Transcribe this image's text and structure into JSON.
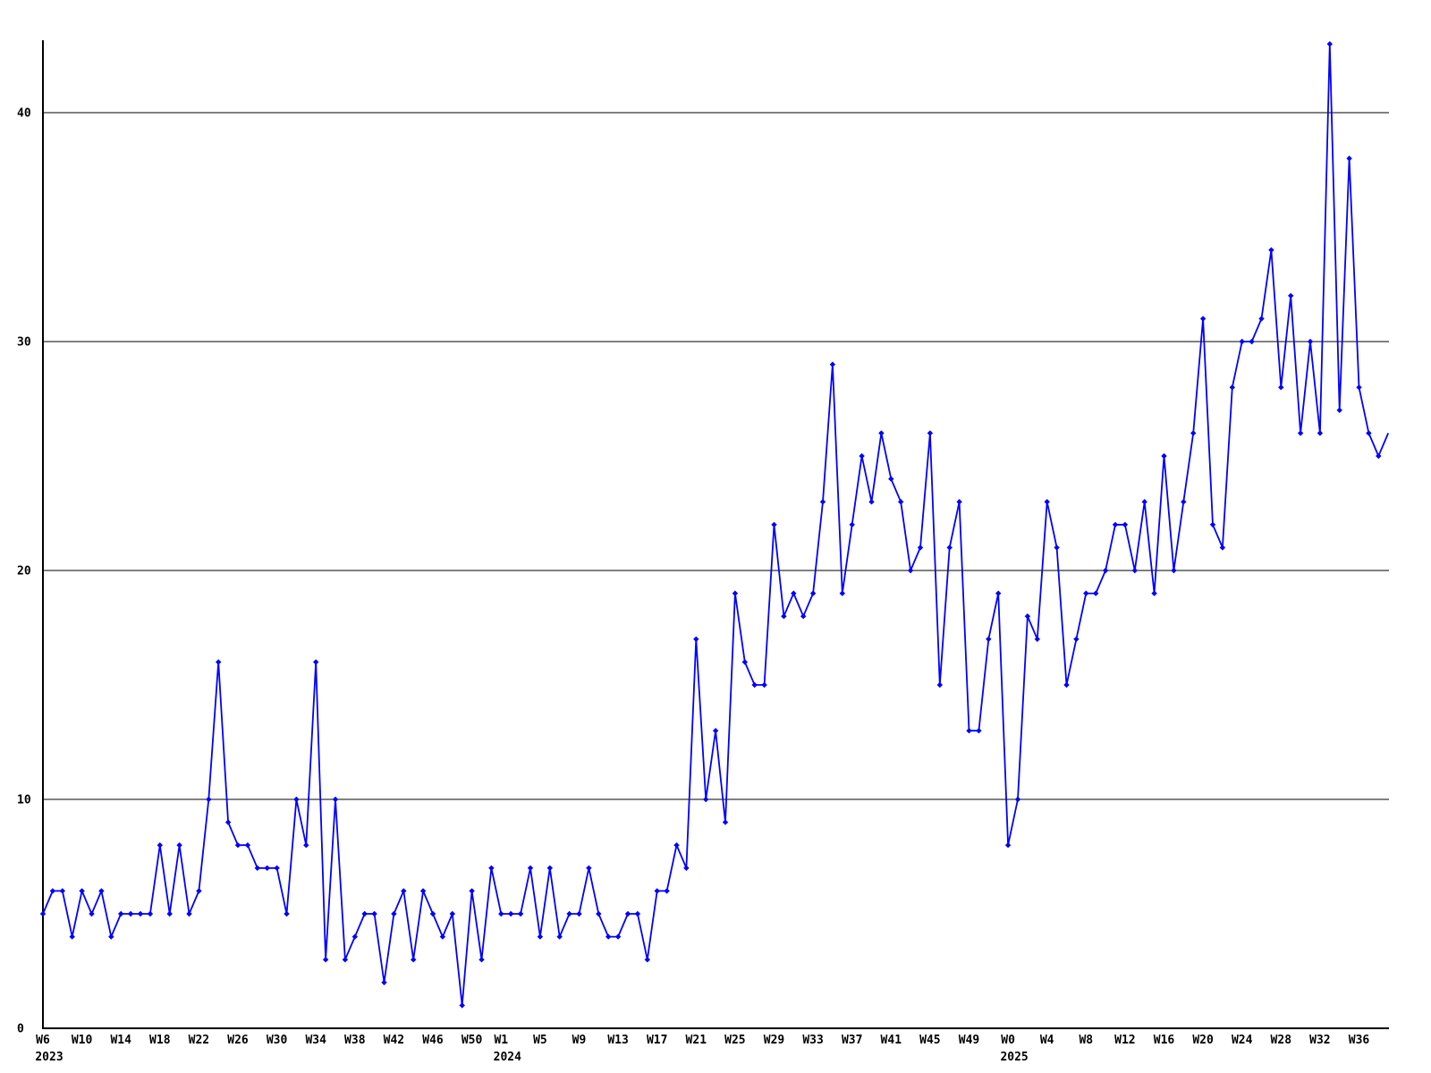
{
  "chart_data": {
    "type": "line",
    "title": "",
    "legend": "none",
    "grid": "horizontal",
    "marker": "diamond",
    "last_point_marker": false,
    "line_color": "#0000ff",
    "grid_color": "#000000",
    "axis_color": "#000000",
    "background_color": "#ffffff",
    "ylim": [
      0,
      44
    ],
    "y_ticks": [
      {
        "label": "0",
        "value": 0
      },
      {
        "label": "10",
        "value": 10
      },
      {
        "label": "20",
        "value": 20
      },
      {
        "label": "30",
        "value": 30
      },
      {
        "label": "40",
        "value": 40
      }
    ],
    "grid_values": [
      10,
      20,
      30,
      40
    ],
    "x_unit": "ISO week",
    "series": [
      {
        "name": "weekly-values",
        "color": "#0000ff",
        "segments": [
          {
            "year": 2023,
            "first_week": "W6",
            "values": [
              5,
              6,
              6,
              4,
              6,
              5,
              6,
              4,
              5,
              5,
              5,
              5,
              8,
              5,
              8,
              5,
              6,
              10,
              16,
              9,
              8,
              8,
              7,
              7,
              7,
              5,
              10,
              8,
              16,
              3,
              10,
              3,
              4,
              5,
              5,
              2,
              5,
              6,
              3,
              6,
              5,
              4,
              5,
              1,
              6,
              3,
              7
            ]
          },
          {
            "year": 2024,
            "first_week": "W1",
            "values": [
              5,
              5,
              5,
              7,
              4,
              7,
              4,
              5,
              5,
              7,
              5,
              4,
              4,
              5,
              5,
              3,
              6,
              6,
              8,
              7,
              17,
              10,
              13,
              9,
              19,
              16,
              15,
              15,
              22,
              18,
              19,
              18,
              19,
              23,
              29,
              19,
              22,
              25,
              23,
              26,
              24,
              23,
              20,
              21,
              26,
              15,
              21,
              23,
              13,
              13,
              17,
              19
            ]
          },
          {
            "year": 2025,
            "first_week": "W0",
            "values": [
              8,
              10,
              18,
              17,
              23,
              21,
              15,
              17,
              19,
              19,
              20,
              22,
              22,
              20,
              23,
              19,
              25,
              20,
              23,
              26,
              31,
              22,
              21,
              28,
              30,
              30,
              31,
              34,
              28,
              32,
              26,
              30,
              26,
              43,
              27,
              38,
              28,
              26,
              25,
              26
            ]
          }
        ]
      }
    ],
    "x_ticks": [
      {
        "label": "W6",
        "index": 0,
        "year_label": "2023"
      },
      {
        "label": "W10",
        "index": 4
      },
      {
        "label": "W14",
        "index": 8
      },
      {
        "label": "W18",
        "index": 12
      },
      {
        "label": "W22",
        "index": 16
      },
      {
        "label": "W26",
        "index": 20
      },
      {
        "label": "W30",
        "index": 24
      },
      {
        "label": "W34",
        "index": 28
      },
      {
        "label": "W38",
        "index": 32
      },
      {
        "label": "W42",
        "index": 36
      },
      {
        "label": "W46",
        "index": 40
      },
      {
        "label": "W50",
        "index": 44
      },
      {
        "label": "W1",
        "index": 47,
        "year_label": "2024"
      },
      {
        "label": "W5",
        "index": 51
      },
      {
        "label": "W9",
        "index": 55
      },
      {
        "label": "W13",
        "index": 59
      },
      {
        "label": "W17",
        "index": 63
      },
      {
        "label": "W21",
        "index": 67
      },
      {
        "label": "W25",
        "index": 71
      },
      {
        "label": "W29",
        "index": 75
      },
      {
        "label": "W33",
        "index": 79
      },
      {
        "label": "W37",
        "index": 83
      },
      {
        "label": "W41",
        "index": 87
      },
      {
        "label": "W45",
        "index": 91
      },
      {
        "label": "W49",
        "index": 95
      },
      {
        "label": "W0",
        "index": 99,
        "year_label": "2025"
      },
      {
        "label": "W4",
        "index": 103
      },
      {
        "label": "W8",
        "index": 107
      },
      {
        "label": "W12",
        "index": 111
      },
      {
        "label": "W16",
        "index": 115
      },
      {
        "label": "W20",
        "index": 119
      },
      {
        "label": "W24",
        "index": 123
      },
      {
        "label": "W28",
        "index": 127
      },
      {
        "label": "W32",
        "index": 131
      },
      {
        "label": "W36",
        "index": 135
      }
    ]
  }
}
